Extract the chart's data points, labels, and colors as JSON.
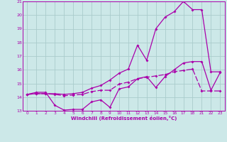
{
  "xlabel": "Windchill (Refroidissement éolien,°C)",
  "bg_color": "#cce8e8",
  "grid_color": "#aacccc",
  "line_color": "#aa00aa",
  "n_points": 22,
  "xlabels": [
    "0",
    "1",
    "2",
    "3",
    "4",
    "5",
    "6",
    "7",
    "8",
    "9",
    "10",
    "11",
    "12",
    "13",
    "14",
    "15",
    "16",
    "17",
    "18",
    "21",
    "22",
    "23"
  ],
  "yticks": [
    13,
    14,
    15,
    16,
    17,
    18,
    19,
    20,
    21
  ],
  "line1_y": [
    14.2,
    14.35,
    14.35,
    13.4,
    13.05,
    13.1,
    13.1,
    13.65,
    13.8,
    13.25,
    14.6,
    14.75,
    15.35,
    15.5,
    14.7,
    15.5,
    16.0,
    16.5,
    16.6,
    16.6,
    14.5,
    15.8
  ],
  "line2_y": [
    14.2,
    14.25,
    14.25,
    14.2,
    14.1,
    14.15,
    14.2,
    14.4,
    14.5,
    14.5,
    14.95,
    15.1,
    15.35,
    15.45,
    15.55,
    15.65,
    15.85,
    15.95,
    16.05,
    14.45,
    14.45,
    14.45
  ],
  "line3_y": [
    14.2,
    14.25,
    14.25,
    14.25,
    14.2,
    14.25,
    14.35,
    14.65,
    14.85,
    15.25,
    15.75,
    16.05,
    17.8,
    16.7,
    19.0,
    19.85,
    20.25,
    21.0,
    20.4,
    20.4,
    15.85,
    15.85
  ]
}
